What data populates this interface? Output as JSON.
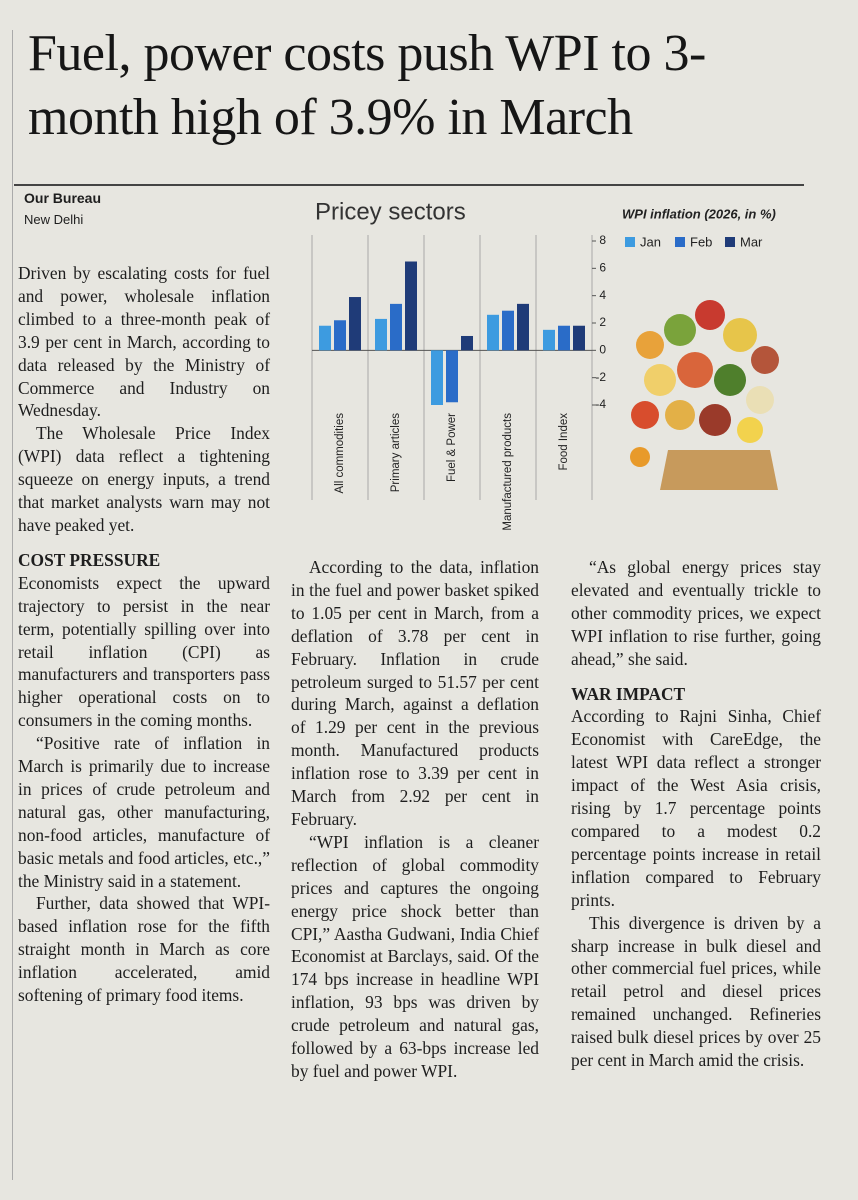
{
  "headline": "Fuel, power costs push WPI to 3-month high of 3.9% in March",
  "byline": {
    "author": "Our Bureau",
    "location": "New Delhi"
  },
  "chart_data": {
    "type": "bar",
    "title": "Pricey sectors",
    "subtitle": "WPI inflation (2026, in %)",
    "categories": [
      "All commodities",
      "Primary articles",
      "Fuel & Power",
      "Manufactured products",
      "Food Index"
    ],
    "series": [
      {
        "name": "Jan",
        "color": "#3d9be0",
        "values": [
          1.8,
          2.3,
          -4.0,
          2.6,
          1.5
        ]
      },
      {
        "name": "Feb",
        "color": "#2a6cc8",
        "values": [
          2.2,
          3.4,
          -3.8,
          2.9,
          1.8
        ]
      },
      {
        "name": "Mar",
        "color": "#1f3b78",
        "values": [
          3.9,
          6.5,
          1.05,
          3.4,
          1.8
        ]
      }
    ],
    "ylim": [
      -4,
      8
    ],
    "yticks": [
      -4,
      -2,
      0,
      2,
      4,
      6,
      8
    ],
    "grid": false,
    "legend": "top"
  },
  "columns": [
    [
      {
        "paragraph": "Driven by escalating costs for fuel and power, wholesale inflation climbed to a three-month peak of 3.9 per cent in March, according to data released by the Ministry of Commerce and Industry on Wednesday."
      },
      {
        "paragraph": "The Wholesale Price Index (WPI) data reflect a tightening squeeze on energy inputs, a trend that market analysts warn may not have peaked yet."
      },
      {
        "heading": "COST PRESSURE"
      },
      {
        "paragraph": "Economists expect the upward trajectory to persist in the near term, potentially spilling over into retail inflation (CPI) as manufacturers and transporters pass higher operational costs on to consumers in the coming months."
      },
      {
        "paragraph": "“Positive rate of inflation in March is primarily due to increase in prices of crude petroleum and natural gas, other manufacturing, non-food articles, manufacture of basic metals and food articles, etc.,” the Ministry said in a statement."
      },
      {
        "paragraph": "Further, data showed that WPI-based inflation rose for the fifth straight month in March as core inflation accelerated, amid softening of primary food items."
      }
    ],
    [
      {
        "paragraph": "According to the data, inflation in the fuel and power basket spiked to 1.05 per cent in March, from a deflation of 3.78 per cent in February. Inflation in crude petroleum surged to 51.57 per cent during March, against a deflation of 1.29 per cent in the previous month. Manufactured products inflation rose to 3.39 per cent in March from 2.92 per cent in February."
      },
      {
        "paragraph": "“WPI inflation is a cleaner reflection of global commodity prices and captures the ongoing energy price shock better than CPI,” Aastha Gudwani, India Chief Economist at Barclays, said. Of the 174 bps increase in headline WPI inflation, 93 bps was driven by crude petroleum and natural gas, followed by a 63-bps increase led by fuel and power WPI."
      }
    ],
    [
      {
        "paragraph": "“As global energy prices stay elevated and eventually trickle to other commodity prices, we expect WPI inflation to rise further, going ahead,” she said."
      },
      {
        "heading": "WAR IMPACT"
      },
      {
        "paragraph": "According to Rajni Sinha, Chief Economist with CareEdge, the latest WPI data reflect a stronger impact of the West Asia crisis, rising by 1.7 percentage points compared to a modest 0.2 percentage points increase in retail inflation compared to February prints."
      },
      {
        "paragraph": "This divergence is driven by a sharp increase in bulk diesel and other commercial fuel prices, while retail petrol and diesel prices remained unchanged. Refineries raised bulk diesel prices by over 25 per cent in March amid the crisis."
      }
    ]
  ]
}
